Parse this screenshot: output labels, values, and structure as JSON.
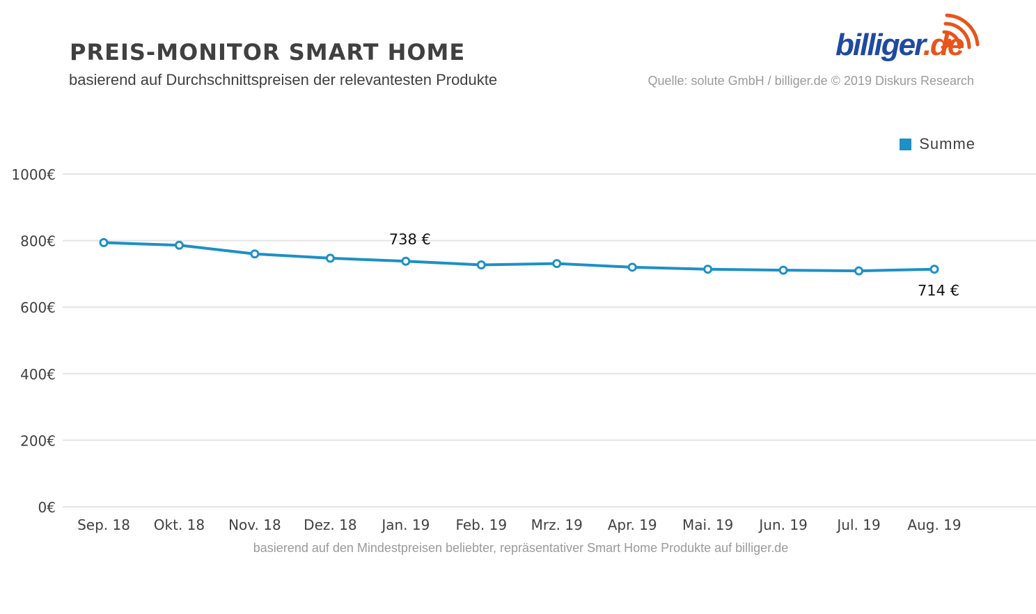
{
  "header": {
    "title": "PREIS-MONITOR SMART HOME",
    "subtitle": "basierend auf Durchschnittspreisen der relevantesten Produkte",
    "source": "Quelle: solute GmbH / billiger.de © 2019 Diskurs Research"
  },
  "logo": {
    "name": "billiger",
    "suffix": ".de"
  },
  "footnote": "basierend auf den Mindestpreisen beliebter, repräsentativer Smart Home Produkte auf billiger.de",
  "colors": {
    "series": "#1d90c5",
    "grid": "#e4e4e4",
    "text": "#404040",
    "muted": "#9a9a9a",
    "logo_blue": "#1f4aa0",
    "logo_orange": "#e8541c"
  },
  "chart_data": {
    "type": "line",
    "title": "PREIS-MONITOR SMART HOME",
    "xlabel": "",
    "ylabel": "",
    "categories": [
      "Sep. 18",
      "Okt. 18",
      "Nov. 18",
      "Dez. 18",
      "Jan. 19",
      "Feb. 19",
      "Mrz. 19",
      "Apr. 19",
      "Mai. 19",
      "Jun. 19",
      "Jul. 19",
      "Aug. 19"
    ],
    "series": [
      {
        "name": "Summe",
        "values": [
          794,
          786,
          760,
          747,
          738,
          727,
          731,
          720,
          714,
          711,
          709,
          714
        ]
      }
    ],
    "ylim": [
      0,
      1000
    ],
    "yticks": [
      0,
      200,
      400,
      600,
      800,
      1000
    ],
    "ytick_labels": [
      "0€",
      "200€",
      "400€",
      "600€",
      "800€",
      "1000€"
    ],
    "grid": true,
    "legend": "top-right",
    "annotations": [
      {
        "index": 4,
        "text": "738 €",
        "position": "above"
      },
      {
        "index": 11,
        "text": "714 €",
        "position": "below"
      }
    ]
  }
}
